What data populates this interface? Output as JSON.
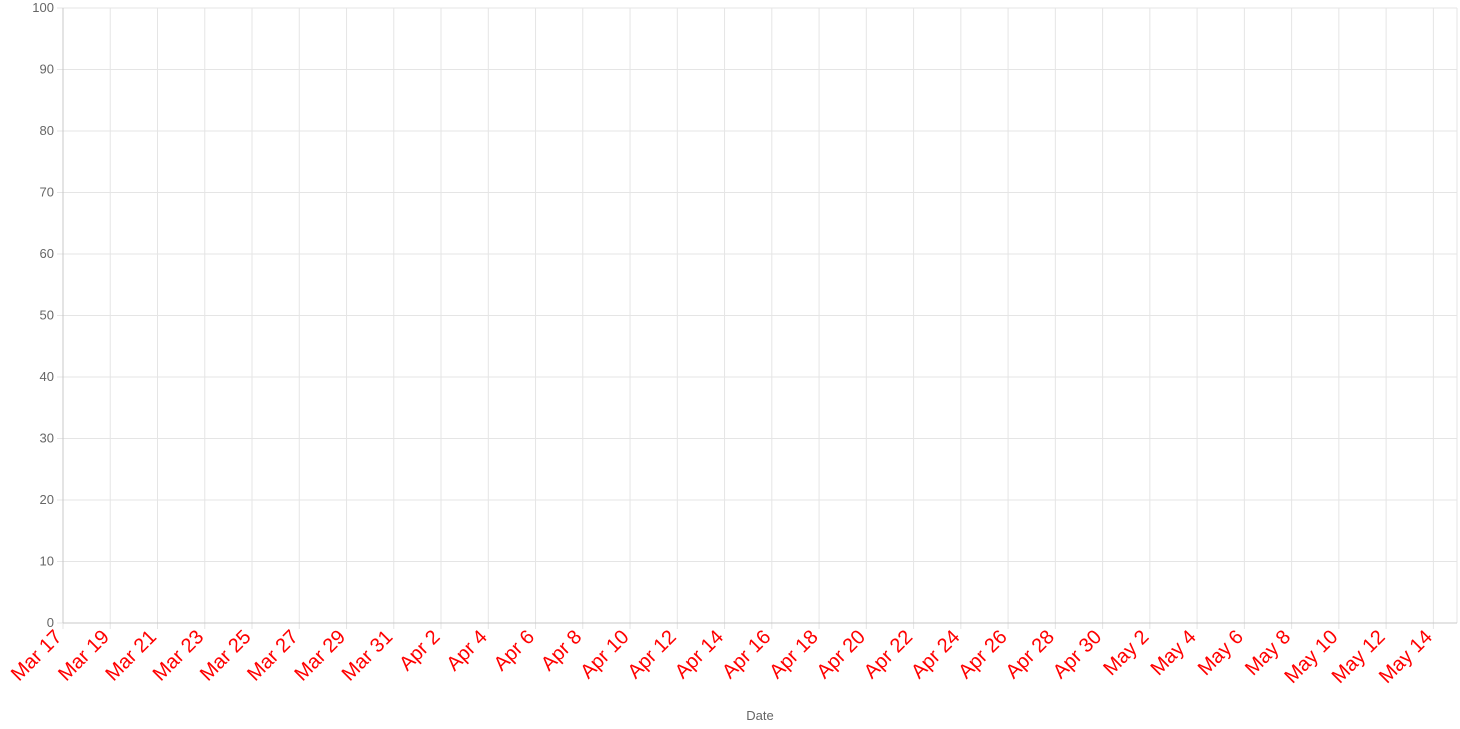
{
  "chart_data": {
    "type": "line",
    "title": "",
    "xlabel": "Date",
    "ylabel": "",
    "ylim": [
      0,
      100
    ],
    "y_ticks": [
      "0",
      "10",
      "20",
      "30",
      "40",
      "50",
      "60",
      "70",
      "80",
      "90",
      "100"
    ],
    "x_ticks": [
      "Mar 17",
      "Mar 19",
      "Mar 21",
      "Mar 23",
      "Mar 25",
      "Mar 27",
      "Mar 29",
      "Mar 31",
      "Apr 2",
      "Apr 4",
      "Apr 6",
      "Apr 8",
      "Apr 10",
      "Apr 12",
      "Apr 14",
      "Apr 16",
      "Apr 18",
      "Apr 20",
      "Apr 22",
      "Apr 24",
      "Apr 26",
      "Apr 28",
      "Apr 30",
      "May 2",
      "May 4",
      "May 6",
      "May 8",
      "May 10",
      "May 12",
      "May 14"
    ],
    "xlim": [
      "Mar 17",
      "May 15"
    ],
    "series": [],
    "grid": true,
    "legend": "none",
    "colors": {
      "grid": "#e5e5e5",
      "axis": "#c8c8c8",
      "x_tick_label": "#ff0000",
      "y_tick_label": "#666666",
      "axis_title": "#666666"
    }
  }
}
